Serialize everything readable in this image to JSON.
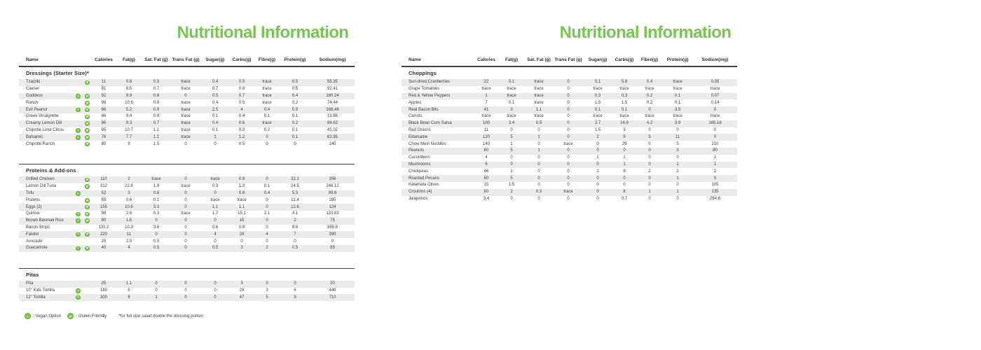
{
  "columns": {
    "name": "Name",
    "nutrients": [
      "Calories",
      "Fat(g)",
      "Sat. Fat (g)",
      "Trans Fat (g)",
      "Sugar(g)",
      "Carbs(g)",
      "Fibre(g)",
      "Protein(g)",
      "Sodium(mg)"
    ]
  },
  "colors": {
    "brand_green": "#77c74f",
    "stripe_gray": "#ebebeb",
    "rule_dark": "#414141",
    "text": "#3d3d3d"
  },
  "icon_glyphs": {
    "v": "v",
    "gf": "gf"
  },
  "left_page": {
    "title": "Nutritional Information",
    "sections": [
      {
        "heading": "Dressings (Starter Size)*",
        "rows": [
          {
            "name": "Tzatziki",
            "icons": [
              "gf"
            ],
            "values": [
              "11",
              "0.8",
              "0.5",
              "trace",
              "0.4",
              "0.5",
              "trace",
              "0.5",
              "55.35"
            ]
          },
          {
            "name": "Caeser",
            "icons": [],
            "values": [
              "81",
              "8.5",
              "0.7",
              "trace",
              "0.7",
              "0.8",
              "trace",
              "0.5",
              "92.41"
            ]
          },
          {
            "name": "Goddess",
            "icons": [
              "v",
              "gf"
            ],
            "values": [
              "92",
              "9.9",
              "0.8",
              "0",
              "0.5",
              "0.7",
              "trace",
              "0.4",
              "180.24"
            ]
          },
          {
            "name": "Ranch",
            "icons": [
              "gf"
            ],
            "values": [
              "98",
              "10.6",
              "0.8",
              "trace",
              "0.4",
              "0.5",
              "trace",
              "0.2",
              "74.44"
            ]
          },
          {
            "name": "Evil Peanut",
            "icons": [
              "v",
              "gf"
            ],
            "values": [
              "66",
              "5.2",
              "0.9",
              "trace",
              "2.5",
              "4",
              "0.4",
              "0.9",
              "168.48"
            ]
          },
          {
            "name": "Greek Vinaigrette",
            "icons": [
              "gf"
            ],
            "values": [
              "86",
              "9.4",
              "0.8",
              "trace",
              "0.1",
              "0.4",
              "0.1",
              "0.1",
              "19.88"
            ]
          },
          {
            "name": "Creamy Lemon Dill",
            "icons": [
              "gf"
            ],
            "values": [
              "86",
              "9.3",
              "0.7",
              "trace",
              "0.4",
              "0.6",
              "trace",
              "0.2",
              "84.62"
            ]
          },
          {
            "name": "Chipotle Lime Citrus",
            "icons": [
              "v",
              "gf"
            ],
            "values": [
              "95",
              "10.7",
              "1.1",
              "trace",
              "0.1",
              "0.3",
              "0.2",
              "0.1",
              "41.02"
            ]
          },
          {
            "name": "Balsamic",
            "icons": [
              "v",
              "gf"
            ],
            "values": [
              "76",
              "7.7",
              "1.1",
              "trace",
              "1",
              "1.2",
              "0",
              "0.1",
              "82.95"
            ]
          },
          {
            "name": "Chipotle Ranch",
            "icons": [
              "gf"
            ],
            "values": [
              "85",
              "9",
              "1.5",
              "0",
              "0",
              "0.5",
              "0",
              "0",
              "140"
            ]
          }
        ]
      },
      {
        "heading": "Proteins & Add-ons",
        "rows": [
          {
            "name": "Grilled Chicken",
            "icons": [
              "gf"
            ],
            "values": [
              "110",
              "2",
              "trace",
              "0",
              "trace",
              "0.9",
              "0",
              "22.1",
              "356"
            ]
          },
          {
            "name": "Lemon Dill Tuna",
            "icons": [
              "gf"
            ],
            "values": [
              "312",
              "22.6",
              "1.9",
              "trace",
              "0.9",
              "1.3",
              "0.1",
              "24.5",
              "246.12"
            ]
          },
          {
            "name": "Tofu",
            "icons": [
              "v"
            ],
            "values": [
              "52",
              "3",
              "0.6",
              "0",
              "0",
              "0.8",
              "0.4",
              "5.3",
              "89.6"
            ]
          },
          {
            "name": "Prawns",
            "icons": [
              "gf"
            ],
            "values": [
              "55",
              "0.6",
              "0.1",
              "0",
              "trace",
              "trace",
              "0",
              "12.4",
              "285"
            ]
          },
          {
            "name": "Eggs (2)",
            "icons": [
              "gf"
            ],
            "values": [
              "155",
              "10.6",
              "3.3",
              "0",
              "1.1",
              "1.1",
              "0",
              "12.6",
              "124"
            ]
          },
          {
            "name": "Quinoa",
            "icons": [
              "v",
              "gf"
            ],
            "values": [
              "98",
              "2.6",
              "0.3",
              "trace",
              "1.7",
              "15.1",
              "2.1",
              "4.1",
              "133.83"
            ]
          },
          {
            "name": "Brown Basmati Rice",
            "icons": [
              "v",
              "gf"
            ],
            "values": [
              "80",
              "1.5",
              "0",
              "0",
              "0",
              "15",
              "0",
              "2",
              "75"
            ]
          },
          {
            "name": "Bacon Strips",
            "icons": [],
            "values": [
              "131.2",
              "10.3",
              "3.6",
              "0",
              "0.6",
              "0.8",
              "0",
              "8.8",
              "355.8"
            ]
          },
          {
            "name": "Falafel",
            "icons": [
              "v",
              "gf"
            ],
            "values": [
              "220",
              "11",
              "0",
              "0",
              "4",
              "28",
              "4",
              "7",
              "390"
            ]
          },
          {
            "name": "Avocado",
            "icons": [],
            "values": [
              "25",
              "2.5",
              "0.5",
              "0",
              "0",
              "0",
              "0",
              "0",
              "0"
            ]
          },
          {
            "name": "Guacamole",
            "icons": [
              "v",
              "gf"
            ],
            "values": [
              "40",
              "4",
              "0.5",
              "0",
              "0.5",
              "3",
              "2",
              "0.5",
              "85"
            ]
          }
        ]
      },
      {
        "heading": "Pitas",
        "rows": [
          {
            "name": "Pita",
            "icons": [],
            "values": [
              "25",
              "1.1",
              "0",
              "0",
              "0",
              "3",
              "0",
              "0",
              "20"
            ]
          },
          {
            "name": "10\" Kids Tortilla",
            "icons": [
              "v"
            ],
            "values": [
              "180",
              "5",
              "0",
              "0",
              "0",
              "29",
              "3",
              "6",
              "440"
            ]
          },
          {
            "name": "12\" Tortilla",
            "icons": [
              "v"
            ],
            "values": [
              "300",
              "8",
              "1",
              "0",
              "0",
              "47",
              "5",
              "9",
              "710"
            ]
          }
        ]
      }
    ]
  },
  "right_page": {
    "title": "Nutritional Information",
    "sections": [
      {
        "heading": "Choppings",
        "rows": [
          {
            "name": "Sun-dried Cranberries",
            "icons": [],
            "values": [
              "22",
              "0.1",
              "trace",
              "0",
              "5.1",
              "5.8",
              "0.4",
              "trace",
              "0.35"
            ]
          },
          {
            "name": "Grape Tomatoes",
            "icons": [],
            "values": [
              "trace",
              "trace",
              "trace",
              "0",
              "trace",
              "trace",
              "trace",
              "trace",
              "trace"
            ]
          },
          {
            "name": "Red & Yellow Peppers",
            "icons": [],
            "values": [
              "1",
              "trace",
              "trace",
              "0",
              "0.3",
              "0.3",
              "0.2",
              "0.1",
              "0.07"
            ]
          },
          {
            "name": "Apples",
            "icons": [],
            "values": [
              "7",
              "0.1",
              "trace",
              "0",
              "1.5",
              "1.5",
              "0.2",
              "0.1",
              "0.14"
            ]
          },
          {
            "name": "Real Bacon Bits",
            "icons": [],
            "values": [
              "41",
              "3",
              "1.1",
              "0",
              "0.1",
              "0.1",
              "0",
              "3.5",
              "0"
            ]
          },
          {
            "name": "Carrots",
            "icons": [],
            "values": [
              "trace",
              "trace",
              "trace",
              "0",
              "trace",
              "trace",
              "trace",
              "trace",
              "trace"
            ]
          },
          {
            "name": "Black Bean Corn Salsa",
            "icons": [],
            "values": [
              "100",
              "3.4",
              "0.5",
              "0",
              "2.7",
              "14.9",
              "4.2",
              "3.9",
              "165.18"
            ]
          },
          {
            "name": "Red Onions",
            "icons": [],
            "values": [
              "11",
              "0",
              "0",
              "0",
              "1.5",
              "3",
              "0",
              "0",
              "0"
            ]
          },
          {
            "name": "Edamame",
            "icons": [],
            "values": [
              "120",
              "5",
              "1",
              "0",
              "2",
              "9",
              "5",
              "11",
              "0"
            ]
          },
          {
            "name": "Chow Mein Noodles",
            "icons": [],
            "values": [
              "140",
              "1",
              "0",
              "trace",
              "0",
              "29",
              "0",
              "5",
              "210"
            ]
          },
          {
            "name": "Peanuts",
            "icons": [],
            "values": [
              "60",
              "5",
              "1",
              "0",
              "0",
              "0",
              "0",
              "3",
              "80"
            ]
          },
          {
            "name": "Cucumbers",
            "icons": [],
            "values": [
              "4",
              "0",
              "0",
              "0",
              "1",
              "1",
              "0",
              "0",
              "1"
            ]
          },
          {
            "name": "Mushrooms",
            "icons": [],
            "values": [
              "6",
              "0",
              "0",
              "0",
              "0",
              "1",
              "0",
              "1",
              "1"
            ]
          },
          {
            "name": "Chickpeas",
            "icons": [],
            "values": [
              "46",
              "1",
              "0",
              "0",
              "1",
              "8",
              "2",
              "2",
              "2"
            ]
          },
          {
            "name": "Roasted Pecans",
            "icons": [],
            "values": [
              "50",
              "5",
              "0",
              "0",
              "0",
              "0",
              "0",
              "1",
              "0"
            ]
          },
          {
            "name": "Kalamata Olives",
            "icons": [],
            "values": [
              "15",
              "1.5",
              "0",
              "0",
              "0",
              "0",
              "0",
              "0",
              "105"
            ]
          },
          {
            "name": "Croutons (4)",
            "icons": [],
            "values": [
              "60",
              "2",
              "0.3",
              "trace",
              "0",
              "8",
              "1",
              "1",
              "135"
            ]
          },
          {
            "name": "Jalapenos",
            "icons": [],
            "values": [
              "3.4",
              "0",
              "0",
              "0",
              "0",
              "0.7",
              "0",
              "0",
              "254.6"
            ]
          }
        ]
      }
    ]
  },
  "legend": {
    "vegan_icon": "v",
    "vegan_label": "- Vegan Option",
    "gf_icon": "gf",
    "gf_label": "- Gluten Friendly",
    "footnote": "*for full size salad double the dressing portion"
  }
}
